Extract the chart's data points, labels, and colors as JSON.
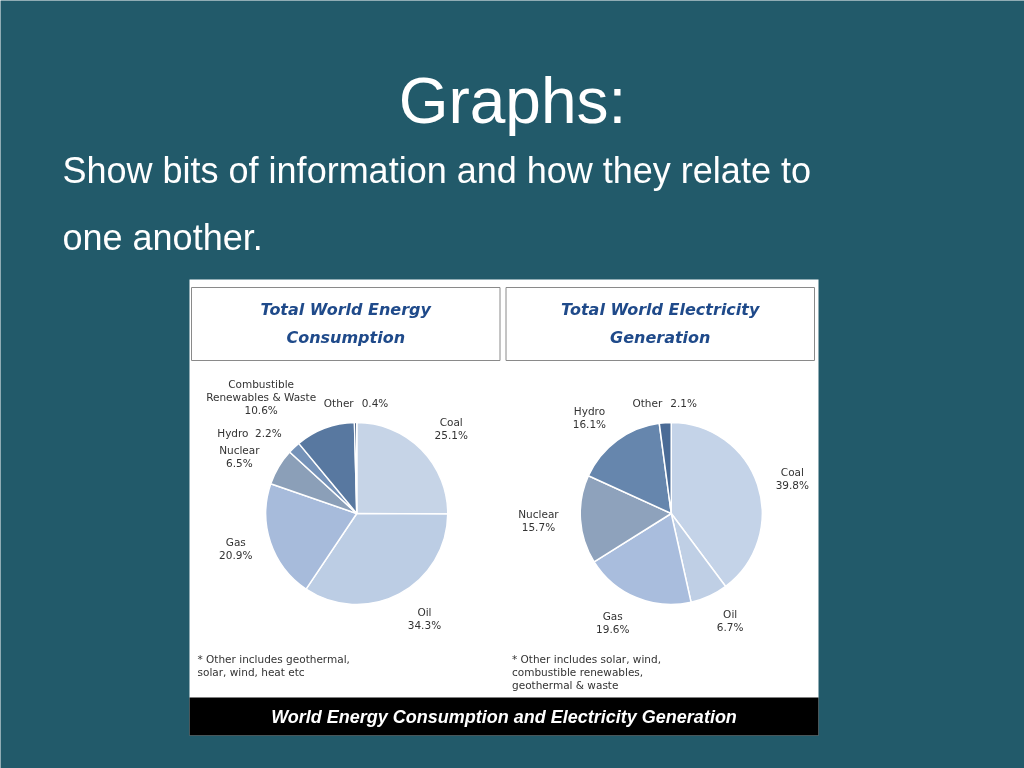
{
  "chart_data": [
    {
      "type": "pie",
      "title": "Total World Energy Consumption",
      "categories": [
        "Coal",
        "Oil",
        "Gas",
        "Nuclear",
        "Hydro",
        "Combustible Renewables & Waste",
        "Other"
      ],
      "values": [
        25.1,
        34.3,
        20.9,
        6.5,
        2.2,
        10.6,
        0.4
      ],
      "value_labels": [
        "25.1%",
        "34.3%",
        "20.9%",
        "6.5%",
        "2.2%",
        "10.6%",
        "0.4%"
      ],
      "colors": [
        "#c6d4e7",
        "#bccde4",
        "#a7bbdb",
        "#8b9fb8",
        "#7592b8",
        "#5878a0",
        "#1e3c66"
      ],
      "annotations": [
        "Graphs:",
        "Show bits of information and how they relate to one another.",
        "* Other includes geothermal, solar, wind, heat etc"
      ]
    },
    {
      "type": "pie",
      "title": "Total World Electricity Generation",
      "categories": [
        "Coal",
        "Oil",
        "Gas",
        "Nuclear",
        "Hydro",
        "Other"
      ],
      "values": [
        39.8,
        6.7,
        19.6,
        15.7,
        16.1,
        2.1
      ],
      "value_labels": [
        "39.8%",
        "6.7%",
        "19.6%",
        "15.7%",
        "16.1%",
        "2.1%"
      ],
      "colors": [
        "#c4d3e8",
        "#bfcfe5",
        "#a9bddd",
        "#8ea2bc",
        "#6686ad",
        "#4a6b96"
      ],
      "annotations": [
        "* Other includes solar, wind, combustible renewables, geothermal & waste",
        "World Energy Consumption and Electricity Generation"
      ]
    }
  ]
}
